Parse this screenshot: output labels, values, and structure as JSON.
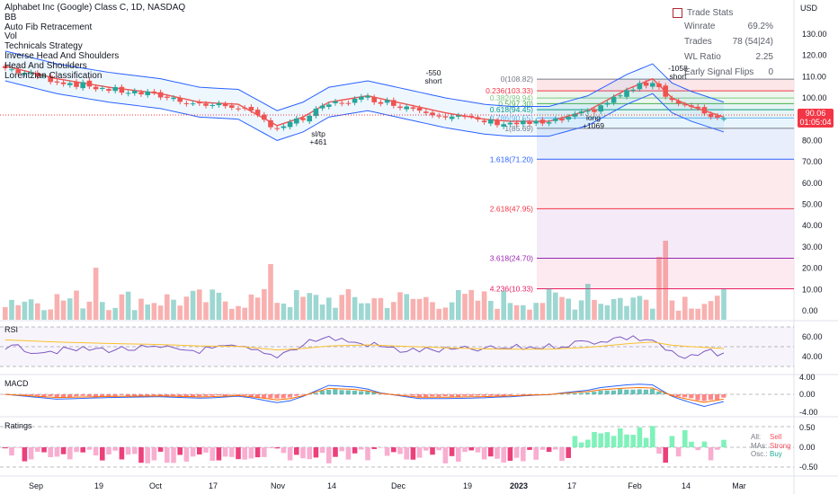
{
  "chart_title": "Alphabet Inc (Google) Class C, 1D, NASDAQ",
  "indicators": [
    "BB",
    "Auto Fib Retracement",
    "Vol",
    "Technicals Strategy",
    "Inverse Head And Shoulders",
    "Head And Shoulders",
    "Lorentzian Classification"
  ],
  "trade_stats": {
    "title": "Trade Stats",
    "rows": [
      {
        "label": "Winrate",
        "value": "69.2%"
      },
      {
        "label": "Trades",
        "value": "78 (54|24)"
      },
      {
        "label": "WL Ratio",
        "value": "2.25"
      },
      {
        "label": "Early Signal Flips",
        "value": "0"
      }
    ]
  },
  "price_axis": {
    "unit": "USD",
    "ticks": [
      "130.00",
      "120.00",
      "110.00",
      "100.00",
      "90.00",
      "80.00",
      "70.00",
      "60.00",
      "50.00",
      "40.00",
      "30.00",
      "20.00",
      "10.00",
      "0.00"
    ],
    "last_price": "90.06",
    "countdown": "01:05:04"
  },
  "fib_levels": [
    {
      "label": "0(108.82)",
      "color": "#787b86"
    },
    {
      "label": "0.236(103.33)",
      "color": "#f23645"
    },
    {
      "label": "0.382(99.94)",
      "color": "#81c784"
    },
    {
      "label": "0.5(97.30)",
      "color": "#4caf50"
    },
    {
      "label": "0.618(94.45)",
      "color": "#089981"
    },
    {
      "label": "0.786(90.55)",
      "color": "#64b5f6"
    },
    {
      "label": "1(85.69)",
      "color": "#787b86"
    },
    {
      "label": "1.618(71.20)",
      "color": "#2962ff"
    },
    {
      "label": "2.618(47.95)",
      "color": "#f23645"
    },
    {
      "label": "3.618(24.70)",
      "color": "#9c27b0"
    },
    {
      "label": "4.236(10.33)",
      "color": "#e91e63"
    }
  ],
  "annotations": [
    {
      "text": "-550",
      "sub": "short"
    },
    {
      "text": "sl/tp",
      "sub": "+461"
    },
    {
      "text": "long",
      "sub": "+1069"
    },
    {
      "text": "-1058",
      "sub": "short"
    }
  ],
  "rsi": {
    "title": "RSI",
    "ticks": [
      "60.00",
      "40.00"
    ]
  },
  "macd": {
    "title": "MACD",
    "ticks": [
      "4.00",
      "0.00",
      "-4.00"
    ]
  },
  "ratings": {
    "title": "Ratings",
    "ticks": [
      "0.50",
      "0.00",
      "-0.50"
    ],
    "legend": [
      {
        "key": "All:",
        "value": "Sell",
        "color": "#f7525f"
      },
      {
        "key": "MAs:",
        "value": "Strong",
        "color": "#f7525f"
      },
      {
        "key": "Osc.:",
        "value": "Buy",
        "color": "#22ab94"
      }
    ]
  },
  "time_axis": [
    "Sep",
    "19",
    "Oct",
    "17",
    "Nov",
    "14",
    "Dec",
    "19",
    "2023",
    "17",
    "Feb",
    "14",
    "Mar"
  ],
  "colors": {
    "up": "#26a69a",
    "down": "#ef5350",
    "bb": "#2962ff",
    "rsi": "#7e57c2",
    "macd_signal": "#ff6d00"
  }
}
